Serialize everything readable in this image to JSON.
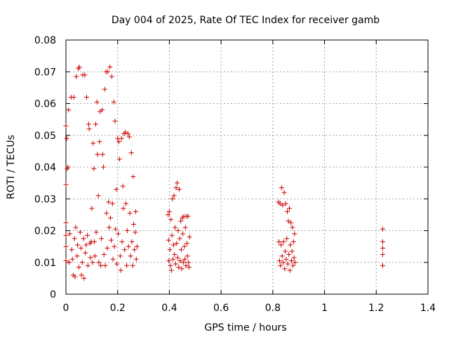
{
  "chart_data": {
    "type": "scatter",
    "title": "Day 004 of 2025, Rate Of TEC Index for receiver gamb",
    "xlabel": "GPS time / hours",
    "ylabel": "ROTI / TECUs",
    "xlim": [
      0,
      1.4
    ],
    "ylim": [
      0,
      0.08
    ],
    "grid": true,
    "x_ticks": [
      0,
      0.2,
      0.4,
      0.6,
      0.8,
      1,
      1.2,
      1.4
    ],
    "x_tick_labels": [
      "0",
      "0.2",
      "0.4",
      "0.6",
      "0.8",
      "1",
      "1.2",
      "1.4"
    ],
    "y_ticks": [
      0,
      0.01,
      0.02,
      0.03,
      0.04,
      0.05,
      0.06,
      0.07,
      0.08
    ],
    "y_tick_labels": [
      "0",
      "0.01",
      "0.02",
      "0.03",
      "0.04",
      "0.05",
      "0.06",
      "0.07",
      "0.08"
    ],
    "marker": "+",
    "color": "#cc0000",
    "series": [
      {
        "name": "ROTI",
        "points": [
          [
            0.0,
            0.053
          ],
          [
            0.0,
            0.0345
          ],
          [
            0.0,
            0.0225
          ],
          [
            0.0,
            0.0185
          ],
          [
            0.0,
            0.015
          ],
          [
            0.0,
            0.0105
          ],
          [
            0.003,
            0.049
          ],
          [
            0.005,
            0.0395
          ],
          [
            0.008,
            0.04
          ],
          [
            0.01,
            0.058
          ],
          [
            0.012,
            0.01
          ],
          [
            0.015,
            0.019
          ],
          [
            0.02,
            0.062
          ],
          [
            0.022,
            0.014
          ],
          [
            0.025,
            0.011
          ],
          [
            0.028,
            0.006
          ],
          [
            0.03,
            0.062
          ],
          [
            0.033,
            0.0175
          ],
          [
            0.035,
            0.0055
          ],
          [
            0.038,
            0.021
          ],
          [
            0.04,
            0.0685
          ],
          [
            0.043,
            0.012
          ],
          [
            0.045,
            0.0155
          ],
          [
            0.048,
            0.071
          ],
          [
            0.05,
            0.0085
          ],
          [
            0.052,
            0.0715
          ],
          [
            0.055,
            0.0195
          ],
          [
            0.058,
            0.0145
          ],
          [
            0.06,
            0.006
          ],
          [
            0.063,
            0.01
          ],
          [
            0.065,
            0.069
          ],
          [
            0.068,
            0.0175
          ],
          [
            0.07,
            0.005
          ],
          [
            0.073,
            0.069
          ],
          [
            0.075,
            0.013
          ],
          [
            0.078,
            0.0155
          ],
          [
            0.08,
            0.062
          ],
          [
            0.083,
            0.0185
          ],
          [
            0.085,
            0.009
          ],
          [
            0.088,
            0.0535
          ],
          [
            0.09,
            0.052
          ],
          [
            0.093,
            0.016
          ],
          [
            0.095,
            0.0115
          ],
          [
            0.098,
            0.0165
          ],
          [
            0.1,
            0.027
          ],
          [
            0.103,
            0.01
          ],
          [
            0.105,
            0.0475
          ],
          [
            0.108,
            0.0395
          ],
          [
            0.11,
            0.0165
          ],
          [
            0.112,
            0.012
          ],
          [
            0.115,
            0.0535
          ],
          [
            0.117,
            0.0195
          ],
          [
            0.12,
            0.0605
          ],
          [
            0.122,
            0.044
          ],
          [
            0.125,
            0.031
          ],
          [
            0.127,
            0.01
          ],
          [
            0.13,
            0.048
          ],
          [
            0.132,
            0.0575
          ],
          [
            0.135,
            0.009
          ],
          [
            0.137,
            0.0175
          ],
          [
            0.14,
            0.058
          ],
          [
            0.142,
            0.044
          ],
          [
            0.145,
            0.04
          ],
          [
            0.147,
            0.0125
          ],
          [
            0.15,
            0.0645
          ],
          [
            0.152,
            0.009
          ],
          [
            0.155,
            0.07
          ],
          [
            0.157,
            0.0255
          ],
          [
            0.16,
            0.0145
          ],
          [
            0.162,
            0.07
          ],
          [
            0.165,
            0.029
          ],
          [
            0.167,
            0.021
          ],
          [
            0.17,
            0.0715
          ],
          [
            0.172,
            0.024
          ],
          [
            0.175,
            0.017
          ],
          [
            0.177,
            0.0685
          ],
          [
            0.18,
            0.0285
          ],
          [
            0.182,
            0.011
          ],
          [
            0.185,
            0.0605
          ],
          [
            0.187,
            0.015
          ],
          [
            0.19,
            0.0545
          ],
          [
            0.192,
            0.0205
          ],
          [
            0.195,
            0.033
          ],
          [
            0.197,
            0.0095
          ],
          [
            0.2,
            0.049
          ],
          [
            0.202,
            0.019
          ],
          [
            0.205,
            0.048
          ],
          [
            0.207,
            0.0425
          ],
          [
            0.21,
            0.012
          ],
          [
            0.212,
            0.0075
          ],
          [
            0.215,
            0.049
          ],
          [
            0.217,
            0.0165
          ],
          [
            0.22,
            0.034
          ],
          [
            0.222,
            0.027
          ],
          [
            0.225,
            0.0505
          ],
          [
            0.227,
            0.014
          ],
          [
            0.23,
            0.051
          ],
          [
            0.232,
            0.0285
          ],
          [
            0.235,
            0.009
          ],
          [
            0.237,
            0.02
          ],
          [
            0.24,
            0.0505
          ],
          [
            0.242,
            0.015
          ],
          [
            0.245,
            0.0495
          ],
          [
            0.247,
            0.0255
          ],
          [
            0.25,
            0.012
          ],
          [
            0.253,
            0.0445
          ],
          [
            0.255,
            0.0165
          ],
          [
            0.258,
            0.009
          ],
          [
            0.26,
            0.037
          ],
          [
            0.262,
            0.022
          ],
          [
            0.265,
            0.014
          ],
          [
            0.268,
            0.0195
          ],
          [
            0.27,
            0.026
          ],
          [
            0.272,
            0.011
          ],
          [
            0.275,
            0.015
          ],
          [
            0.395,
            0.025
          ],
          [
            0.397,
            0.017
          ],
          [
            0.398,
            0.0105
          ],
          [
            0.4,
            0.026
          ],
          [
            0.402,
            0.014
          ],
          [
            0.404,
            0.009
          ],
          [
            0.406,
            0.0235
          ],
          [
            0.408,
            0.0075
          ],
          [
            0.41,
            0.0185
          ],
          [
            0.412,
            0.03
          ],
          [
            0.414,
            0.011
          ],
          [
            0.416,
            0.0155
          ],
          [
            0.418,
            0.031
          ],
          [
            0.42,
            0.0125
          ],
          [
            0.422,
            0.021
          ],
          [
            0.424,
            0.0095
          ],
          [
            0.426,
            0.0335
          ],
          [
            0.428,
            0.016
          ],
          [
            0.43,
            0.035
          ],
          [
            0.432,
            0.0115
          ],
          [
            0.434,
            0.02
          ],
          [
            0.436,
            0.0085
          ],
          [
            0.438,
            0.033
          ],
          [
            0.44,
            0.0175
          ],
          [
            0.442,
            0.0105
          ],
          [
            0.444,
            0.023
          ],
          [
            0.446,
            0.014
          ],
          [
            0.448,
            0.008
          ],
          [
            0.45,
            0.024
          ],
          [
            0.452,
            0.019
          ],
          [
            0.454,
            0.01
          ],
          [
            0.456,
            0.0245
          ],
          [
            0.458,
            0.015
          ],
          [
            0.46,
            0.011
          ],
          [
            0.462,
            0.021
          ],
          [
            0.464,
            0.009
          ],
          [
            0.466,
            0.0245
          ],
          [
            0.468,
            0.016
          ],
          [
            0.47,
            0.012
          ],
          [
            0.472,
            0.0245
          ],
          [
            0.474,
            0.01
          ],
          [
            0.476,
            0.0085
          ],
          [
            0.478,
            0.018
          ],
          [
            0.822,
            0.029
          ],
          [
            0.824,
            0.0165
          ],
          [
            0.826,
            0.0105
          ],
          [
            0.828,
            0.0285
          ],
          [
            0.83,
            0.009
          ],
          [
            0.832,
            0.0155
          ],
          [
            0.834,
            0.0335
          ],
          [
            0.836,
            0.012
          ],
          [
            0.838,
            0.028
          ],
          [
            0.84,
            0.01
          ],
          [
            0.842,
            0.0165
          ],
          [
            0.844,
            0.032
          ],
          [
            0.846,
            0.008
          ],
          [
            0.848,
            0.0135
          ],
          [
            0.85,
            0.0285
          ],
          [
            0.852,
            0.011
          ],
          [
            0.854,
            0.0175
          ],
          [
            0.856,
            0.026
          ],
          [
            0.858,
            0.0095
          ],
          [
            0.86,
            0.023
          ],
          [
            0.862,
            0.0125
          ],
          [
            0.864,
            0.027
          ],
          [
            0.866,
            0.0075
          ],
          [
            0.868,
            0.0155
          ],
          [
            0.87,
            0.0225
          ],
          [
            0.872,
            0.0105
          ],
          [
            0.874,
            0.0135
          ],
          [
            0.876,
            0.021
          ],
          [
            0.878,
            0.009
          ],
          [
            0.88,
            0.0165
          ],
          [
            0.882,
            0.0115
          ],
          [
            0.884,
            0.019
          ],
          [
            0.886,
            0.01
          ],
          [
            1.225,
            0.0205
          ],
          [
            1.225,
            0.0165
          ],
          [
            1.225,
            0.0145
          ],
          [
            1.225,
            0.0125
          ],
          [
            1.225,
            0.009
          ]
        ]
      }
    ]
  }
}
